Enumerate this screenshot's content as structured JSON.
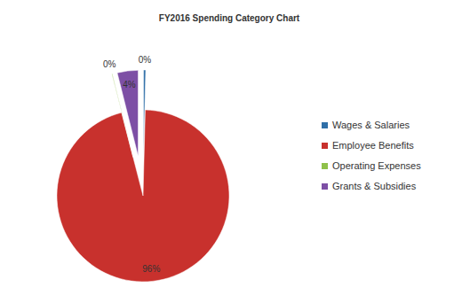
{
  "chart_data": {
    "type": "pie",
    "title": "FY2016 Spending Category Chart",
    "categories": [
      "Wages & Salaries",
      "Employee Benefits",
      "Operating Expenses",
      "Grants & Subsidies"
    ],
    "values": [
      0.4,
      95.6,
      0.1,
      3.9
    ],
    "value_labels": [
      "0%",
      "96%",
      "0%",
      "4%"
    ],
    "colors": [
      "#2f6fa8",
      "#c8312d",
      "#8fc14a",
      "#7d4fa5"
    ],
    "data_labels": true,
    "legend": "right"
  }
}
